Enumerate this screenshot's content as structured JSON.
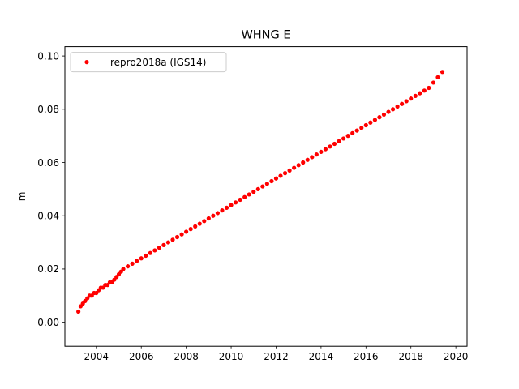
{
  "chart_data": {
    "type": "scatter",
    "title": "WHNG E",
    "xlabel": "",
    "ylabel": "m",
    "xlim": [
      2002.6,
      2020.5
    ],
    "ylim": [
      -0.009,
      0.1035
    ],
    "xticks": [
      2004,
      2006,
      2008,
      2010,
      2012,
      2014,
      2016,
      2018,
      2020
    ],
    "xtick_labels": [
      "2004",
      "2006",
      "2008",
      "2010",
      "2012",
      "2014",
      "2016",
      "2018",
      "2020"
    ],
    "yticks": [
      0.0,
      0.02,
      0.04,
      0.06,
      0.08,
      0.1
    ],
    "ytick_labels": [
      "0.00",
      "0.02",
      "0.04",
      "0.06",
      "0.08",
      "0.10"
    ],
    "grid": false,
    "legend_position": "top-left",
    "series": [
      {
        "name": "repro2018a (IGS14)",
        "color": "#ff0000",
        "marker": "circle",
        "x": [
          2003.2,
          2003.3,
          2003.4,
          2003.5,
          2003.6,
          2003.7,
          2003.8,
          2003.9,
          2004.0,
          2004.1,
          2004.2,
          2004.3,
          2004.4,
          2004.5,
          2004.6,
          2004.7,
          2004.8,
          2004.9,
          2005.0,
          2005.1,
          2005.2,
          2005.4,
          2005.6,
          2005.8,
          2006.0,
          2006.2,
          2006.4,
          2006.6,
          2006.8,
          2007.0,
          2007.2,
          2007.4,
          2007.6,
          2007.8,
          2008.0,
          2008.2,
          2008.4,
          2008.6,
          2008.8,
          2009.0,
          2009.2,
          2009.4,
          2009.6,
          2009.8,
          2010.0,
          2010.2,
          2010.4,
          2010.6,
          2010.8,
          2011.0,
          2011.2,
          2011.4,
          2011.6,
          2011.8,
          2012.0,
          2012.2,
          2012.4,
          2012.6,
          2012.8,
          2013.0,
          2013.2,
          2013.4,
          2013.6,
          2013.8,
          2014.0,
          2014.2,
          2014.4,
          2014.6,
          2014.8,
          2015.0,
          2015.2,
          2015.4,
          2015.6,
          2015.8,
          2016.0,
          2016.2,
          2016.4,
          2016.6,
          2016.8,
          2017.0,
          2017.2,
          2017.4,
          2017.6,
          2017.8,
          2018.0,
          2018.2,
          2018.4,
          2018.6,
          2018.8,
          2019.0,
          2019.2,
          2019.4
        ],
        "y": [
          0.004,
          0.006,
          0.007,
          0.008,
          0.009,
          0.01,
          0.01,
          0.011,
          0.011,
          0.012,
          0.013,
          0.013,
          0.014,
          0.014,
          0.015,
          0.015,
          0.016,
          0.017,
          0.018,
          0.019,
          0.02,
          0.021,
          0.022,
          0.023,
          0.024,
          0.025,
          0.026,
          0.027,
          0.028,
          0.029,
          0.03,
          0.031,
          0.032,
          0.033,
          0.034,
          0.035,
          0.036,
          0.037,
          0.038,
          0.039,
          0.04,
          0.041,
          0.042,
          0.043,
          0.044,
          0.045,
          0.046,
          0.047,
          0.048,
          0.049,
          0.05,
          0.051,
          0.052,
          0.053,
          0.054,
          0.055,
          0.056,
          0.057,
          0.058,
          0.059,
          0.06,
          0.061,
          0.062,
          0.063,
          0.064,
          0.065,
          0.066,
          0.067,
          0.068,
          0.069,
          0.07,
          0.071,
          0.072,
          0.073,
          0.074,
          0.075,
          0.076,
          0.077,
          0.078,
          0.079,
          0.08,
          0.081,
          0.082,
          0.083,
          0.084,
          0.085,
          0.086,
          0.087,
          0.088,
          0.09,
          0.092,
          0.094
        ]
      }
    ]
  }
}
